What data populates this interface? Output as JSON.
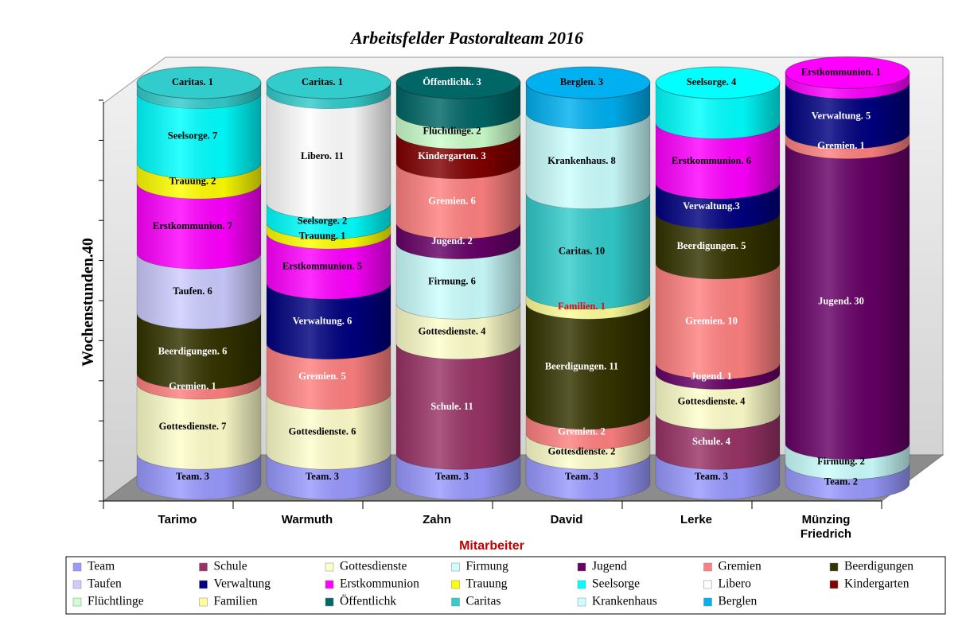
{
  "chart_data": {
    "type": "stacked-cylinder",
    "title": "Arbeitsfelder Pastoralteam 2016",
    "x_label": "Mitarbeiter",
    "y_label": "Wochenstunden.40",
    "categories": [
      "Tarimo",
      "Warmuth",
      "Zahn",
      "David",
      "Lerke",
      "Münzing Friedrich"
    ],
    "ylim": [
      0,
      40
    ],
    "yticks": [
      0,
      4,
      8,
      12,
      16,
      20,
      24,
      28,
      32,
      36,
      40
    ],
    "legend": "bottom",
    "series": [
      {
        "name": "Team",
        "color": "#9999ff",
        "values": [
          3,
          3,
          3,
          3,
          3,
          2
        ],
        "value_labels": [
          "Team. 3",
          "Team. 3",
          "Team. 3",
          "Team. 3",
          "Team. 3",
          "Team. 2"
        ]
      },
      {
        "name": "Schule",
        "color": "#993366",
        "values": [
          null,
          null,
          11,
          null,
          4,
          null
        ],
        "value_labels": [
          null,
          null,
          "Schule. 11",
          null,
          "Schule. 4",
          null
        ]
      },
      {
        "name": "Gottesdienste",
        "color": "#ffffcc",
        "values": [
          7,
          6,
          4,
          2,
          4,
          null
        ],
        "value_labels": [
          "Gottesdienste. 7",
          "Gottesdienste. 6",
          "Gottesdienste. 4",
          "Gottesdienste. 2",
          "Gottesdienste. 4",
          null
        ]
      },
      {
        "name": "Firmung",
        "color": "#ccffff",
        "values": [
          null,
          null,
          6,
          null,
          null,
          2
        ],
        "value_labels": [
          null,
          null,
          "Firmung. 6",
          null,
          null,
          "Firmung. 2"
        ]
      },
      {
        "name": "Jugend",
        "color": "#660066",
        "values": [
          null,
          null,
          2,
          null,
          1,
          30
        ],
        "value_labels": [
          null,
          null,
          "Jugend. 2",
          null,
          "Jugend. 1",
          "Jugend. 30"
        ]
      },
      {
        "name": "Gremien",
        "color": "#ff8080",
        "label_color": "#ffffff",
        "values": [
          1,
          5,
          6,
          2,
          10,
          1
        ],
        "value_labels": [
          "Gremien. 1",
          "Gremien. 5",
          "Gremien. 6",
          "Gremien. 2",
          "Gremien. 10",
          "Gremien. 1"
        ]
      },
      {
        "name": "Beerdigungen",
        "color": "#333300",
        "values": [
          6,
          null,
          null,
          11,
          5,
          null
        ],
        "value_labels": [
          "Beerdigungen. 6",
          null,
          null,
          "Beerdigungen. 11",
          "Beerdigungen. 5",
          null
        ]
      },
      {
        "name": "Taufen",
        "color": "#ccccff",
        "values": [
          6,
          null,
          null,
          null,
          null,
          null
        ],
        "value_labels": [
          "Taufen. 6",
          null,
          null,
          null,
          null,
          null
        ]
      },
      {
        "name": "Verwaltung",
        "color": "#000080",
        "values": [
          null,
          6,
          null,
          null,
          3,
          5
        ],
        "value_labels": [
          null,
          "Verwaltung. 6",
          null,
          null,
          "Verwaltung.3",
          "Verwaltung. 5"
        ]
      },
      {
        "name": "Erstkommunion",
        "color": "#ff00ff",
        "values": [
          7,
          5,
          null,
          null,
          6,
          1
        ],
        "value_labels": [
          "Erstkommunion. 7",
          "Erstkommunion. 5",
          null,
          null,
          "Erstkommunion. 6",
          "Erstkommunion. 1"
        ]
      },
      {
        "name": "Trauung",
        "color": "#ffff00",
        "values": [
          2,
          1,
          null,
          null,
          null,
          null
        ],
        "value_labels": [
          "Trauung. 2",
          "Trauung. 1",
          null,
          null,
          null,
          null
        ]
      },
      {
        "name": "Seelsorge",
        "color": "#00ffff",
        "values": [
          7,
          2,
          null,
          null,
          4,
          null
        ],
        "value_labels": [
          "Seelsorge. 7",
          "Seelsorge. 2",
          null,
          null,
          "Seelsorge. 4",
          null
        ]
      },
      {
        "name": "Libero",
        "color": "#ffffff",
        "values": [
          null,
          11,
          null,
          null,
          null,
          null
        ],
        "value_labels": [
          null,
          "Libero. 11",
          null,
          null,
          null,
          null
        ]
      },
      {
        "name": "Kindergarten",
        "color": "#800000",
        "values": [
          null,
          null,
          3,
          null,
          null,
          null
        ],
        "value_labels": [
          null,
          null,
          "Kindergarten. 3",
          null,
          null,
          null
        ]
      },
      {
        "name": "Flüchtlinge",
        "color": "#ccffcc",
        "values": [
          null,
          null,
          2,
          null,
          null,
          null
        ],
        "value_labels": [
          null,
          null,
          "Flüchtlinge. 2",
          null,
          null,
          null
        ]
      },
      {
        "name": "Familien",
        "color": "#ffff99",
        "label_color": "#ff0000",
        "values": [
          null,
          null,
          null,
          1,
          null,
          null
        ],
        "value_labels": [
          null,
          null,
          null,
          "Familien. 1",
          null,
          null
        ]
      },
      {
        "name": "Öffentlichk",
        "color": "#006666",
        "values": [
          null,
          null,
          3,
          null,
          null,
          null
        ],
        "value_labels": [
          null,
          null,
          "Öffentlichk. 3",
          null,
          null,
          null
        ]
      },
      {
        "name": "Caritas",
        "color": "#33cccc",
        "values": [
          1,
          1,
          null,
          10,
          null,
          null
        ],
        "value_labels": [
          "Caritas. 1",
          "Caritas. 1",
          null,
          "Caritas. 10",
          null,
          null
        ]
      },
      {
        "name": "Krankenhaus",
        "color": "#ccffff",
        "values": [
          null,
          null,
          null,
          8,
          null,
          null
        ],
        "value_labels": [
          null,
          null,
          null,
          "Krankenhaus. 8",
          null,
          null
        ]
      },
      {
        "name": "Berglen",
        "color": "#00b0f0",
        "values": [
          null,
          null,
          null,
          3,
          null,
          null
        ],
        "value_labels": [
          null,
          null,
          null,
          "Berglen. 3",
          null,
          null
        ]
      }
    ]
  }
}
